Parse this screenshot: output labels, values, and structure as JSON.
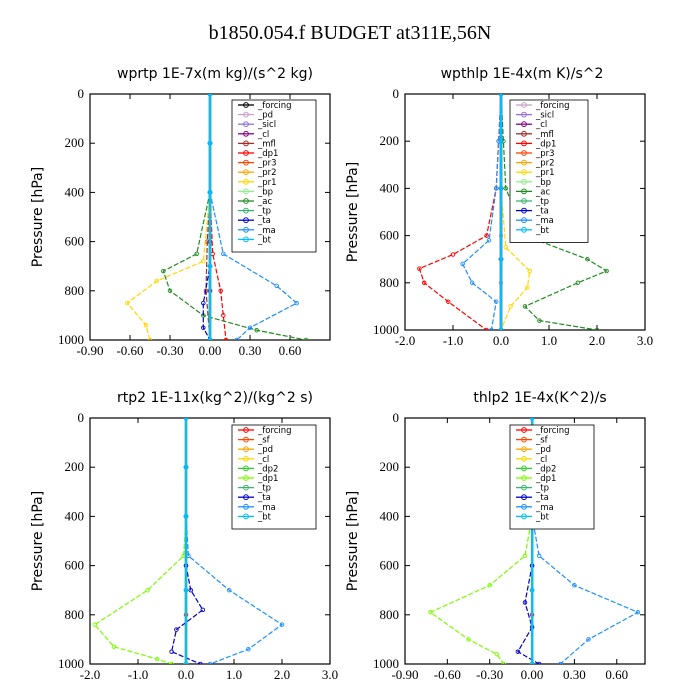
{
  "title": "b1850.054.f  BUDGET at311E,56N",
  "chart_data": [
    {
      "type": "line",
      "title": "wprtp   1E-7x(m kg)/(s^2 kg)",
      "ylabel": "Pressure [hPa]",
      "xlim": [
        -0.9,
        0.9
      ],
      "ylim": [
        1000,
        0
      ],
      "xticks": [
        "-0.90",
        "-0.60",
        "-0.30",
        "0.00",
        "0.30",
        "0.60"
      ],
      "xtick_values": [
        -0.9,
        -0.6,
        -0.3,
        0.0,
        0.3,
        0.6
      ],
      "yticks": [
        "0",
        "200",
        "400",
        "600",
        "800",
        "1000"
      ],
      "ytick_values": [
        0,
        200,
        400,
        600,
        800,
        1000
      ],
      "legend_position": "top-right",
      "series": [
        {
          "name": "_forcing",
          "color": "#000000",
          "x": [
            0,
            0,
            0,
            0,
            0,
            0
          ],
          "y": [
            0,
            200,
            400,
            600,
            800,
            1000
          ]
        },
        {
          "name": "_pd",
          "color": "#c8a2c8",
          "x": [
            0,
            0,
            0,
            0,
            0,
            0
          ],
          "y": [
            0,
            200,
            400,
            600,
            800,
            1000
          ]
        },
        {
          "name": "_sicl",
          "color": "#9370db",
          "x": [
            0,
            0,
            0,
            0,
            0,
            0
          ],
          "y": [
            0,
            200,
            400,
            600,
            800,
            1000
          ]
        },
        {
          "name": "_cl",
          "color": "#8b008b",
          "x": [
            0,
            0,
            0,
            0,
            0,
            0
          ],
          "y": [
            0,
            200,
            400,
            600,
            800,
            1000
          ]
        },
        {
          "name": "_mfl",
          "color": "#a52a2a",
          "x": [
            0,
            0,
            0,
            -0.02,
            -0.03,
            0
          ],
          "y": [
            0,
            200,
            400,
            600,
            800,
            1000
          ]
        },
        {
          "name": "_dp1",
          "color": "#ff0000",
          "x": [
            0,
            0,
            0,
            0.02,
            0.08,
            0.1,
            0.12
          ],
          "y": [
            0,
            200,
            400,
            650,
            800,
            900,
            1000
          ]
        },
        {
          "name": "_pr3",
          "color": "#ff4500",
          "x": [
            0,
            0,
            0,
            0,
            0
          ],
          "y": [
            0,
            200,
            400,
            700,
            1000
          ]
        },
        {
          "name": "_pr2",
          "color": "#ffa500",
          "x": [
            0,
            0,
            0,
            0,
            0
          ],
          "y": [
            0,
            200,
            400,
            700,
            1000
          ]
        },
        {
          "name": "_pr1",
          "color": "#ffd700",
          "x": [
            0,
            0,
            0,
            -0.05,
            -0.4,
            -0.62,
            -0.48,
            -0.45
          ],
          "y": [
            0,
            200,
            400,
            680,
            760,
            850,
            940,
            1000
          ]
        },
        {
          "name": "_bp",
          "color": "#90ee90",
          "x": [
            0,
            0,
            0,
            0,
            0
          ],
          "y": [
            0,
            200,
            400,
            700,
            1000
          ]
        },
        {
          "name": "_ac",
          "color": "#228b22",
          "x": [
            0,
            0,
            0,
            -0.1,
            -0.35,
            -0.3,
            -0.05,
            0.35,
            0.72
          ],
          "y": [
            0,
            200,
            400,
            650,
            720,
            800,
            900,
            960,
            1000
          ]
        },
        {
          "name": "_tp",
          "color": "#3cb371",
          "x": [
            0,
            0,
            0,
            0,
            0
          ],
          "y": [
            0,
            200,
            400,
            700,
            1000
          ]
        },
        {
          "name": "_ta",
          "color": "#0000cd",
          "x": [
            0,
            0,
            0,
            0,
            -0.05,
            -0.05,
            0
          ],
          "y": [
            0,
            200,
            400,
            700,
            850,
            950,
            1000
          ]
        },
        {
          "name": "_ma",
          "color": "#1e90ff",
          "x": [
            0,
            0,
            0,
            0.1,
            0.5,
            0.65,
            0.3,
            0.2
          ],
          "y": [
            0,
            200,
            400,
            650,
            780,
            850,
            950,
            1000
          ]
        },
        {
          "name": "_bt",
          "color": "#00bfff",
          "x": [
            0,
            0,
            0,
            0,
            0
          ],
          "y": [
            0,
            200,
            400,
            700,
            1000
          ]
        }
      ]
    },
    {
      "type": "line",
      "title": "wpthlp   1E-4x(m K)/s^2",
      "ylabel": "Pressure [hPa]",
      "xlim": [
        -2.0,
        3.0
      ],
      "ylim": [
        1000,
        0
      ],
      "xticks": [
        "-2.0",
        "-1.0",
        "0.0",
        "1.0",
        "2.0",
        "3.0"
      ],
      "xtick_values": [
        -2,
        -1,
        0,
        1,
        2,
        3
      ],
      "yticks": [
        "0",
        "200",
        "400",
        "600",
        "800",
        "1000"
      ],
      "ytick_values": [
        0,
        200,
        400,
        600,
        800,
        1000
      ],
      "legend_position": "top-right",
      "series": [
        {
          "name": "_forcing",
          "color": "#c8a2c8",
          "x": [
            0,
            0,
            0,
            0,
            0,
            0
          ],
          "y": [
            0,
            200,
            400,
            600,
            800,
            1000
          ]
        },
        {
          "name": "_sicl",
          "color": "#9370db",
          "x": [
            0,
            0,
            0,
            0,
            0
          ],
          "y": [
            0,
            200,
            400,
            700,
            1000
          ]
        },
        {
          "name": "_cl",
          "color": "#8b008b",
          "x": [
            0,
            0,
            0,
            0,
            0
          ],
          "y": [
            0,
            200,
            400,
            700,
            1000
          ]
        },
        {
          "name": "_mfl",
          "color": "#a52a2a",
          "x": [
            0,
            0,
            0,
            0,
            0
          ],
          "y": [
            0,
            200,
            400,
            700,
            1000
          ]
        },
        {
          "name": "_dp1",
          "color": "#ff0000",
          "x": [
            0,
            -0.05,
            -0.1,
            -0.3,
            -1.0,
            -1.7,
            -1.6,
            -1.1,
            -0.3
          ],
          "y": [
            0,
            200,
            400,
            600,
            680,
            740,
            800,
            880,
            1000
          ]
        },
        {
          "name": "_pr3",
          "color": "#ff4500",
          "x": [
            0,
            0,
            0,
            0,
            0
          ],
          "y": [
            0,
            200,
            400,
            700,
            1000
          ]
        },
        {
          "name": "_pr2",
          "color": "#ffa500",
          "x": [
            0,
            0,
            0,
            0,
            0
          ],
          "y": [
            0,
            200,
            400,
            700,
            1000
          ]
        },
        {
          "name": "_pr1",
          "color": "#ffd700",
          "x": [
            0,
            0,
            0,
            0.1,
            0.6,
            0.55,
            0.2,
            0
          ],
          "y": [
            0,
            200,
            400,
            650,
            750,
            820,
            900,
            1000
          ]
        },
        {
          "name": "_bp",
          "color": "#90ee90",
          "x": [
            0,
            0,
            0,
            0,
            0
          ],
          "y": [
            0,
            200,
            400,
            700,
            1000
          ]
        },
        {
          "name": "_ac",
          "color": "#228b22",
          "x": [
            0,
            0.05,
            0.1,
            0.5,
            1.8,
            2.2,
            1.6,
            0.5,
            0.8,
            2.0
          ],
          "y": [
            0,
            200,
            400,
            600,
            700,
            750,
            800,
            900,
            960,
            1000
          ]
        },
        {
          "name": "_tp",
          "color": "#3cb371",
          "x": [
            0,
            0,
            0,
            0,
            0
          ],
          "y": [
            0,
            200,
            400,
            700,
            1000
          ]
        },
        {
          "name": "_ta",
          "color": "#0000cd",
          "x": [
            0,
            0,
            0,
            0,
            0
          ],
          "y": [
            0,
            200,
            400,
            700,
            1000
          ]
        },
        {
          "name": "_ma",
          "color": "#1e90ff",
          "x": [
            0,
            -0.05,
            -0.1,
            -0.25,
            -0.8,
            -0.6,
            -0.1,
            -0.2
          ],
          "y": [
            0,
            200,
            400,
            620,
            720,
            800,
            880,
            1000
          ]
        },
        {
          "name": "_bt",
          "color": "#00bfff",
          "x": [
            0,
            0,
            0,
            0,
            0
          ],
          "y": [
            0,
            200,
            400,
            700,
            1000
          ]
        }
      ]
    },
    {
      "type": "line",
      "title": "rtp2   1E-11x(kg^2)/(kg^2 s)",
      "ylabel": "Pressure [hPa]",
      "xlim": [
        -2.0,
        3.0
      ],
      "ylim": [
        1000,
        0
      ],
      "xticks": [
        "-2.0",
        "-1.0",
        "0.0",
        "1.0",
        "2.0",
        "3.0"
      ],
      "xtick_values": [
        -2,
        -1,
        0,
        1,
        2,
        3
      ],
      "yticks": [
        "0",
        "200",
        "400",
        "600",
        "800",
        "1000"
      ],
      "ytick_values": [
        0,
        200,
        400,
        600,
        800,
        1000
      ],
      "legend_position": "top-right",
      "series": [
        {
          "name": "_forcing",
          "color": "#ff0000",
          "x": [
            0,
            0,
            0,
            0,
            0,
            0
          ],
          "y": [
            0,
            200,
            400,
            600,
            800,
            1000
          ]
        },
        {
          "name": "_sf",
          "color": "#ff4500",
          "x": [
            0,
            0,
            0,
            0,
            0
          ],
          "y": [
            0,
            200,
            400,
            700,
            1000
          ]
        },
        {
          "name": "_pd",
          "color": "#ffa500",
          "x": [
            0,
            0,
            0,
            0,
            0
          ],
          "y": [
            0,
            200,
            400,
            700,
            1000
          ]
        },
        {
          "name": "_cl",
          "color": "#ffd700",
          "x": [
            0,
            0,
            0,
            0,
            0
          ],
          "y": [
            0,
            200,
            400,
            700,
            1000
          ]
        },
        {
          "name": "_dp2",
          "color": "#32cd32",
          "x": [
            0,
            0,
            0,
            0,
            0
          ],
          "y": [
            0,
            200,
            400,
            700,
            1000
          ]
        },
        {
          "name": "_dp1",
          "color": "#7cfc00",
          "x": [
            0,
            0,
            0,
            -0.05,
            -0.8,
            -1.9,
            -1.5,
            -0.6,
            -0.3
          ],
          "y": [
            0,
            200,
            400,
            560,
            700,
            840,
            930,
            980,
            1000
          ]
        },
        {
          "name": "_tp",
          "color": "#3cb371",
          "x": [
            0,
            0,
            0,
            0,
            0
          ],
          "y": [
            0,
            200,
            400,
            700,
            1000
          ]
        },
        {
          "name": "_ta",
          "color": "#0000cd",
          "x": [
            0,
            0,
            0,
            0,
            0.1,
            0.35,
            -0.2,
            -0.3,
            0.3
          ],
          "y": [
            0,
            200,
            400,
            600,
            700,
            780,
            860,
            950,
            1000
          ]
        },
        {
          "name": "_ma",
          "color": "#1e90ff",
          "x": [
            0,
            0,
            0,
            0.05,
            0.9,
            2.0,
            1.3,
            0.5
          ],
          "y": [
            0,
            200,
            400,
            560,
            700,
            840,
            940,
            1000
          ]
        },
        {
          "name": "_bt",
          "color": "#00bfff",
          "x": [
            0,
            0,
            0,
            0,
            0
          ],
          "y": [
            0,
            200,
            400,
            700,
            1000
          ]
        }
      ]
    },
    {
      "type": "line",
      "title": "thlp2   1E-4x(K^2)/s",
      "ylabel": "Pressure [hPa]",
      "xlim": [
        -0.9,
        0.8
      ],
      "ylim": [
        1000,
        0
      ],
      "xticks": [
        "-0.90",
        "-0.60",
        "-0.30",
        "0.00",
        "0.30",
        "0.60"
      ],
      "xtick_values": [
        -0.9,
        -0.6,
        -0.3,
        0.0,
        0.3,
        0.6
      ],
      "yticks": [
        "0",
        "200",
        "400",
        "600",
        "800",
        "1000"
      ],
      "ytick_values": [
        0,
        200,
        400,
        600,
        800,
        1000
      ],
      "legend_position": "top-right",
      "series": [
        {
          "name": "_forcing",
          "color": "#ff0000",
          "x": [
            0,
            0,
            0,
            0,
            0,
            0
          ],
          "y": [
            0,
            200,
            400,
            600,
            800,
            1000
          ]
        },
        {
          "name": "_sf",
          "color": "#ff4500",
          "x": [
            0,
            0,
            0,
            0,
            0
          ],
          "y": [
            0,
            200,
            400,
            700,
            1000
          ]
        },
        {
          "name": "_pd",
          "color": "#ffa500",
          "x": [
            0,
            0,
            0,
            0,
            0
          ],
          "y": [
            0,
            200,
            400,
            700,
            1000
          ]
        },
        {
          "name": "_cl",
          "color": "#ffd700",
          "x": [
            0,
            0,
            0,
            0,
            0
          ],
          "y": [
            0,
            200,
            400,
            700,
            1000
          ]
        },
        {
          "name": "_dp2",
          "color": "#32cd32",
          "x": [
            0,
            0,
            0,
            0,
            0
          ],
          "y": [
            0,
            200,
            400,
            700,
            1000
          ]
        },
        {
          "name": "_dp1",
          "color": "#7cfc00",
          "x": [
            0,
            0,
            0,
            -0.05,
            -0.3,
            -0.72,
            -0.45,
            -0.25,
            -0.2
          ],
          "y": [
            0,
            200,
            400,
            560,
            680,
            790,
            900,
            960,
            1000
          ]
        },
        {
          "name": "_tp",
          "color": "#3cb371",
          "x": [
            0,
            0,
            0,
            0,
            0
          ],
          "y": [
            0,
            200,
            400,
            700,
            1000
          ]
        },
        {
          "name": "_ta",
          "color": "#0000cd",
          "x": [
            0,
            0,
            0,
            0,
            -0.05,
            0,
            -0.1,
            0.05
          ],
          "y": [
            0,
            200,
            400,
            600,
            750,
            850,
            950,
            1000
          ]
        },
        {
          "name": "_ma",
          "color": "#1e90ff",
          "x": [
            0,
            0,
            0,
            0.05,
            0.3,
            0.75,
            0.4,
            0.2
          ],
          "y": [
            0,
            200,
            400,
            560,
            680,
            790,
            900,
            1000
          ]
        },
        {
          "name": "_bt",
          "color": "#00bfff",
          "x": [
            0,
            0,
            0,
            0,
            0
          ],
          "y": [
            0,
            200,
            400,
            700,
            1000
          ]
        }
      ]
    }
  ]
}
